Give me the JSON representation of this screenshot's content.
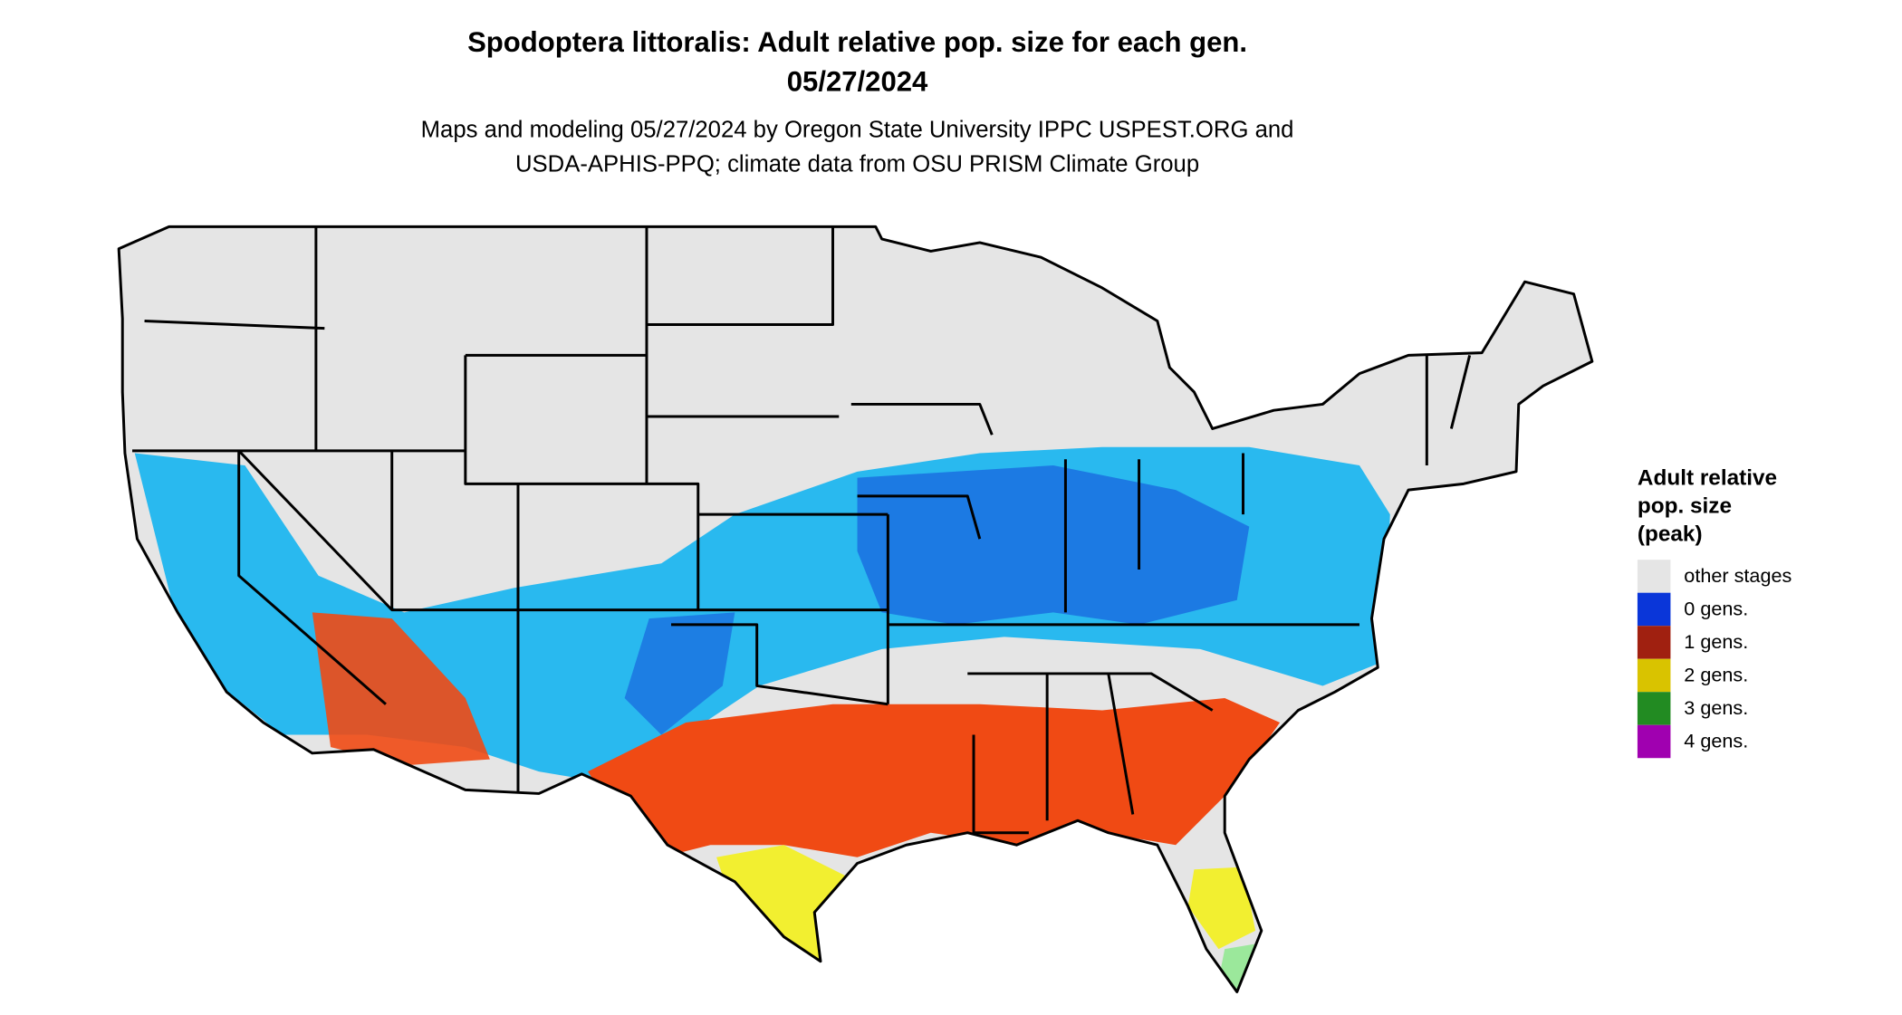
{
  "header": {
    "title": [
      "Spodoptera littoralis: Adult relative pop. size for each gen.",
      "05/27/2024"
    ],
    "subtitle": [
      "Maps and modeling 05/27/2024 by Oregon State University IPPC USPEST.ORG and",
      "USDA-APHIS-PPQ; climate data from OSU PRISM Climate Group"
    ]
  },
  "legend": {
    "title": [
      "Adult relative",
      "pop. size",
      "(peak)"
    ],
    "entries": [
      {
        "label": "other stages",
        "color": "#e5e5e5"
      },
      {
        "label": "0 gens.",
        "color": "#0a36d9"
      },
      {
        "label": "1 gens.",
        "color": "#a02010"
      },
      {
        "label": "2 gens.",
        "color": "#d9c300"
      },
      {
        "label": "3 gens.",
        "color": "#228b22"
      },
      {
        "label": "4 gens.",
        "color": "#a000b0"
      }
    ]
  }
}
